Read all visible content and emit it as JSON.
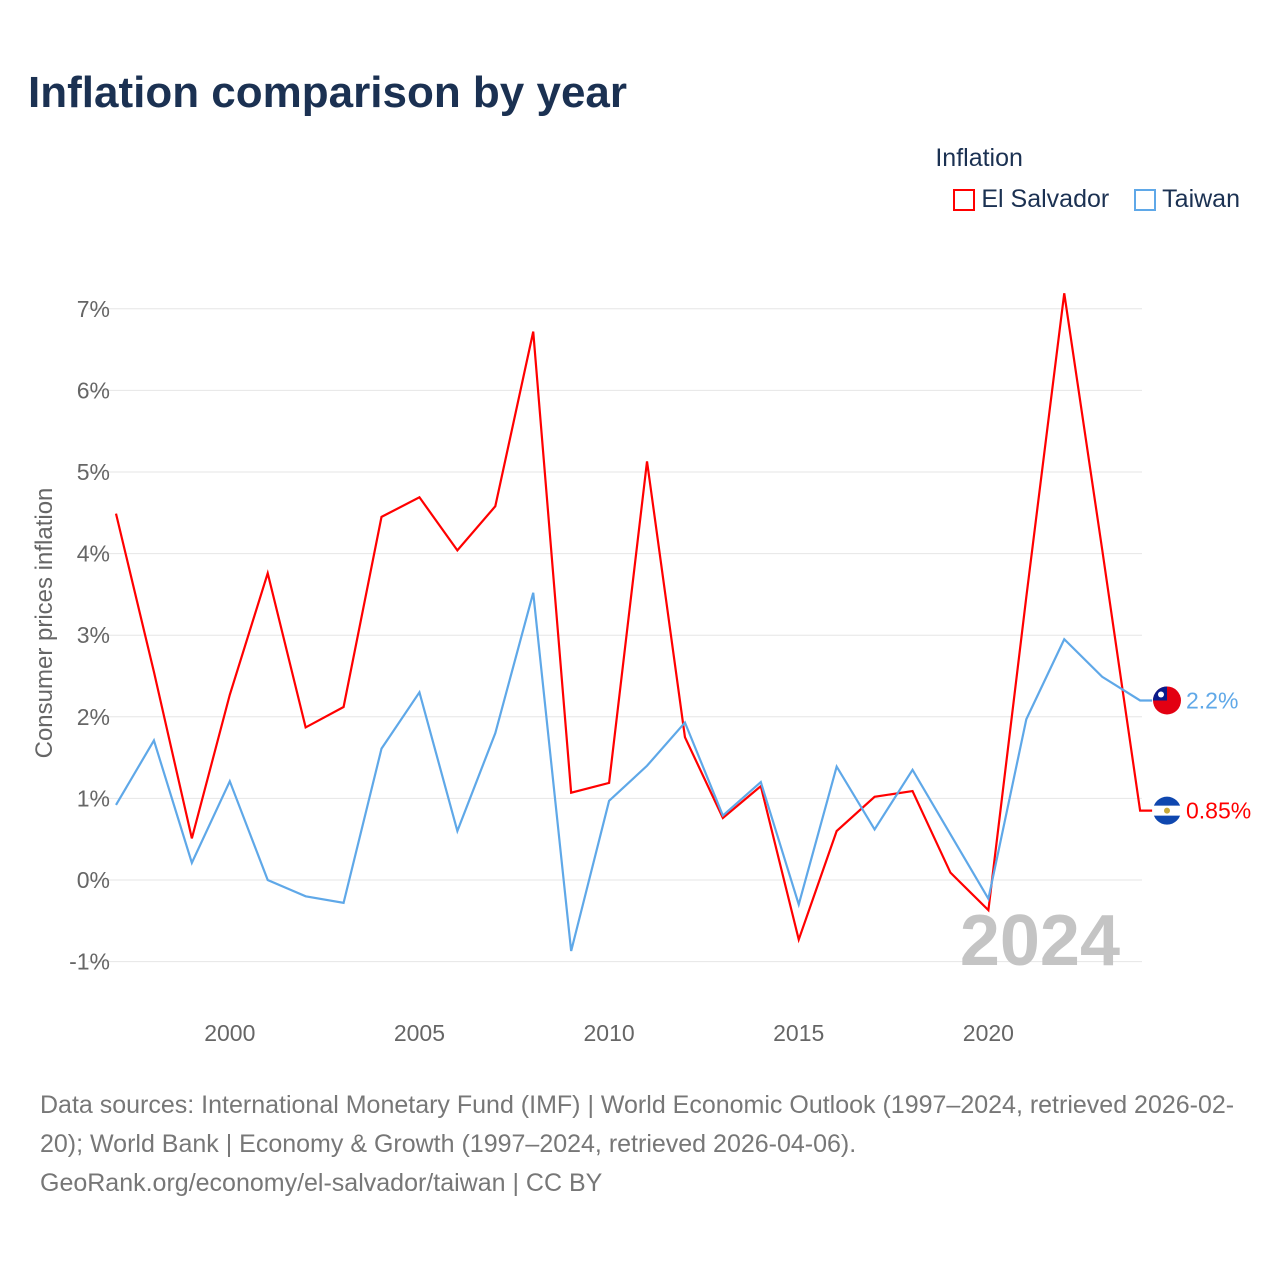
{
  "title": "Inflation comparison by year",
  "legend": {
    "title": "Inflation",
    "items": [
      "El Salvador",
      "Taiwan"
    ]
  },
  "footer": {
    "line1": "Data sources: International Monetary Fund (IMF) | World Economic Outlook (1997–2024, retrieved 2026-02-20); World Bank | Economy & Growth (1997–2024, retrieved 2026-04-06).",
    "line2": "GeoRank.org/economy/el-salvador/taiwan | CC BY"
  },
  "chart_data": {
    "type": "line",
    "title": "Inflation comparison by year",
    "ylabel": "Consumer prices inflation",
    "xlabel": "",
    "year_label": "2024",
    "ylim": [
      -1.4,
      7.4
    ],
    "xlim": [
      1997,
      2024
    ],
    "yticks": [
      -1,
      0,
      1,
      2,
      3,
      4,
      5,
      6,
      7
    ],
    "ytick_labels": [
      "-1%",
      "0%",
      "1%",
      "2%",
      "3%",
      "4%",
      "5%",
      "6%",
      "7%"
    ],
    "xticks": [
      2000,
      2005,
      2010,
      2015,
      2020
    ],
    "xtick_labels": [
      "2000",
      "2005",
      "2010",
      "2015",
      "2020"
    ],
    "x": [
      1997,
      1998,
      1999,
      2000,
      2001,
      2002,
      2003,
      2004,
      2005,
      2006,
      2007,
      2008,
      2009,
      2010,
      2011,
      2012,
      2013,
      2014,
      2015,
      2016,
      2017,
      2018,
      2019,
      2020,
      2021,
      2022,
      2023,
      2024
    ],
    "series": [
      {
        "name": "El Salvador",
        "color": "#ff0000",
        "end_label": "0.85%",
        "values": [
          4.49,
          2.55,
          0.51,
          2.27,
          3.76,
          1.87,
          2.12,
          4.45,
          4.69,
          4.04,
          4.58,
          6.72,
          1.07,
          1.19,
          5.13,
          1.75,
          0.76,
          1.15,
          -0.73,
          0.6,
          1.02,
          1.09,
          0.09,
          -0.37,
          3.47,
          7.19,
          4.05,
          0.85
        ]
      },
      {
        "name": "Taiwan",
        "color": "#5fa8e8",
        "end_label": "2.2%",
        "values": [
          0.92,
          1.71,
          0.21,
          1.21,
          0.0,
          -0.2,
          -0.28,
          1.61,
          2.3,
          0.6,
          1.8,
          3.52,
          -0.87,
          0.97,
          1.4,
          1.93,
          0.79,
          1.2,
          -0.3,
          1.39,
          0.62,
          1.35,
          0.56,
          -0.23,
          1.97,
          2.95,
          2.49,
          2.2
        ]
      }
    ]
  }
}
